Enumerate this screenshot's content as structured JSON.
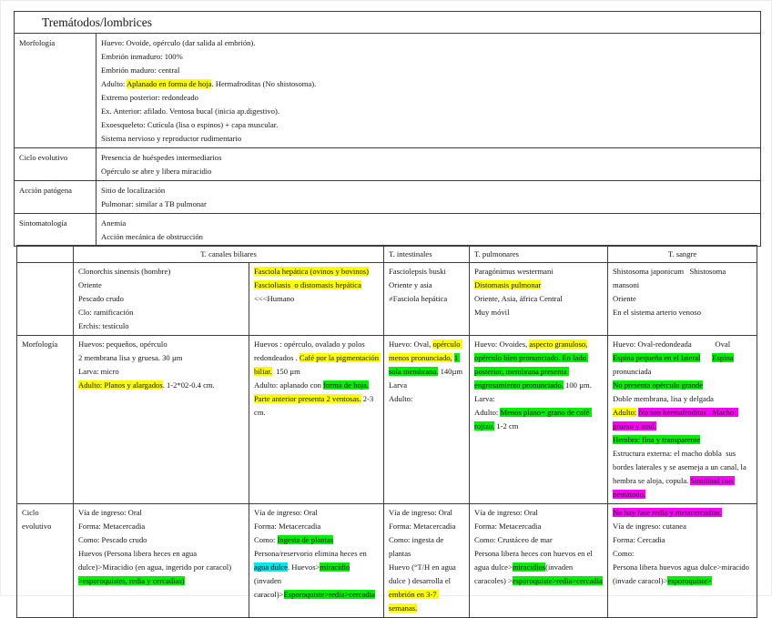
{
  "colors": {
    "highlight_yellow": "#ffff00",
    "highlight_green": "#00ee00",
    "highlight_cyan": "#00e5ee",
    "highlight_magenta": "#ff00ff",
    "text": "#161616",
    "border": "#3d3d3d"
  },
  "top_table": {
    "title": "Tremátodos/lombrices",
    "rows": [
      {
        "label": "Morfología",
        "lines": [
          [
            {
              "t": "Huevo: Ovoide, opérculo (dar salida al embrión)."
            }
          ],
          [
            {
              "t": "Embrión inmaduro: 100%"
            }
          ],
          [
            {
              "t": "Embrión maduro: central"
            }
          ],
          [
            {
              "t": "Adulto: "
            },
            {
              "t": "Aplanado en forma de hoja",
              "h": "yellow"
            },
            {
              "t": ". Hermafroditas (No shistosoma)."
            }
          ],
          [
            {
              "t": "Extremo posterior: redondeado"
            }
          ],
          [
            {
              "t": "Ex. Anterior: afilado. Ventosa bucal (inicia ap.digestivo)."
            }
          ],
          [
            {
              "t": "Exoesqueleto: Cutícula (lisa o espinos) + capa muscular."
            }
          ],
          [
            {
              "t": "Sistema nervioso y reproductor rudimentario"
            }
          ]
        ]
      },
      {
        "label": "Ciclo evolutivo",
        "lines": [
          [
            {
              "t": "Presencia de huéspedes intermediarios"
            }
          ],
          [
            {
              "t": "Opérculo se abre y libera miracidio"
            }
          ]
        ]
      },
      {
        "label": "Acción patógena",
        "lines": [
          [
            {
              "t": "Sitio de localización"
            }
          ],
          [
            {
              "t": "Pulmonar: similar a TB pulmonar"
            }
          ]
        ]
      },
      {
        "label": "Sintomatología",
        "lines": [
          [
            {
              "t": "Anemia"
            }
          ],
          [
            {
              "t": "Acción mecánica de obstrucción"
            }
          ]
        ]
      }
    ]
  },
  "bottom_table": {
    "column_headers": [
      "T. canales biliares",
      "T. intestinales",
      "T. pulmonares",
      "T. sangre"
    ],
    "row_labels": {
      "morfologia": "Morfología",
      "ciclo": "Ciclo evolutivo"
    },
    "species": [
      [
        [
          {
            "t": "Clonorchis sinensis (hombre)"
          }
        ],
        [
          {
            "t": "Oriente"
          }
        ],
        [
          {
            "t": "Pescado crudo"
          }
        ],
        [
          {
            "t": "Clo: ramificación"
          }
        ],
        [
          {
            "t": "Erchis: testículo"
          }
        ]
      ],
      [
        [
          {
            "t": "Fasciola hepática (ovinos y bovinos)",
            "h": "yellow"
          }
        ],
        [
          {
            "t": "Fascioliasis  o distomasis hepática",
            "h": "yellow"
          }
        ],
        [
          {
            "t": "<<<Humano"
          }
        ]
      ],
      [
        [
          {
            "t": "Fasciolepsis buski"
          }
        ],
        [
          {
            "t": "Oriente y asia"
          }
        ],
        [
          {
            "t": "≠Fasciola hepática"
          }
        ]
      ],
      [
        [
          {
            "t": "Paragónimus westermani"
          }
        ],
        [
          {
            "t": "Distomasis pulmonar",
            "h": "yellow"
          }
        ],
        [
          {
            "t": "Oriente, Asia, áfrica Central"
          }
        ],
        [
          {
            "t": "Muy móvil"
          }
        ]
      ],
      [
        [
          {
            "t": "Shistosoma japonicum   Shistosoma mansoni"
          }
        ],
        [
          {
            "t": "Oriente"
          }
        ],
        [
          {
            "t": "En el sistema arterio venoso"
          }
        ]
      ]
    ],
    "morfologia": [
      [
        [
          {
            "t": "Huevos: pequeños, opérculo"
          }
        ],
        [
          {
            "t": "2 membrana lisa y gruesa. 30 µm"
          }
        ],
        [
          {
            "t": "Larva: micro"
          }
        ],
        [
          {
            "t": "Adulto: Planos y alargados",
            "h": "yellow"
          },
          {
            "t": ". 1-2*02-0.4 cm."
          }
        ]
      ],
      [
        [
          {
            "t": "Huevos : opérculo, ovalado y polos redondeados . "
          },
          {
            "t": "Café por la pigmentación biliar.",
            "h": "yellow"
          },
          {
            "t": "  150 µm"
          }
        ],
        [
          {
            "t": "Adulto: aplanado con "
          },
          {
            "t": "forma de hoja.",
            "h": "green"
          },
          {
            "t": " "
          },
          {
            "t": "Parte anterior presenta 2 ventosas.",
            "h": "yellow"
          },
          {
            "t": " 2-3 cm."
          }
        ]
      ],
      [
        [
          {
            "t": "Huevo: Oval, "
          },
          {
            "t": "opérculo menos pronunciado,",
            "h": "yellow"
          },
          {
            "t": " "
          },
          {
            "t": "1 sola membrana.",
            "h": "green"
          },
          {
            "t": " 140µm"
          }
        ],
        [
          {
            "t": "Larva"
          }
        ],
        [
          {
            "t": "Adulto:"
          }
        ]
      ],
      [
        [
          {
            "t": "Huevo: Ovoides, "
          },
          {
            "t": "aspecto granuloso,",
            "h": "yellow"
          },
          {
            "t": " "
          },
          {
            "t": "opérculo bien pronunciado. En lado posterior, membrana presenta engrosamiento pronunciado.",
            "h": "green"
          },
          {
            "t": " 100 µm."
          }
        ],
        [
          {
            "t": "Larva:"
          }
        ],
        [
          {
            "t": "Adulto: "
          },
          {
            "t": "Menos plano= grano de café rojizo.",
            "h": "green"
          },
          {
            "t": " 1-2 cm"
          }
        ]
      ],
      [
        [
          {
            "t": "Huevo: Oval-redondeada            Oval"
          }
        ],
        [
          {
            "t": "Espina pequeña en el lateral",
            "h": "green"
          },
          {
            "t": "      "
          },
          {
            "t": "Espina",
            "h": "green"
          }
        ],
        [
          {
            "t": "pronunciada"
          }
        ],
        [
          {
            "t": "No presenta opérculo grande",
            "h": "green"
          }
        ],
        [
          {
            "t": "Doble membrana, lisa y delgada"
          }
        ],
        [
          {
            "t": "Adulto:",
            "h": "yellow"
          },
          {
            "t": " "
          },
          {
            "t": "No son hermafroditas . Macho: grueso y azul.",
            "h": "magenta"
          }
        ],
        [
          {
            "t": "Hembra: fina y transparente",
            "h": "green"
          }
        ],
        [
          {
            "t": "Estructura externa: el macho dobla  sus bordes laterales y se asemeja a un canal, la hembra se aloja, copula. "
          },
          {
            "t": "Similitud con nemátodo.",
            "h": "magenta"
          }
        ]
      ]
    ],
    "ciclo": [
      [
        [
          {
            "t": "Vía de ingreso: Oral"
          }
        ],
        [
          {
            "t": "Forma: Metacercadia"
          }
        ],
        [
          {
            "t": "Como: Pescado crudo"
          }
        ],
        [
          {
            "t": "Huevos (Persona libera heces en agua dulce)>Miracidio (en agua, ingerido por caracol)"
          }
        ],
        [
          {
            "t": ">esporoquistes, redia y cercadias)",
            "h": "green"
          }
        ]
      ],
      [
        [
          {
            "t": "Vía de ingreso: Oral"
          }
        ],
        [
          {
            "t": "Forma: Metacercadia"
          }
        ],
        [
          {
            "t": "Como: "
          },
          {
            "t": "Ingesta de plantas",
            "h": "green"
          }
        ],
        [
          {
            "t": "Persona/reservorio elimina heces en "
          },
          {
            "t": "agua dulce",
            "h": "cyan"
          },
          {
            "t": ". Huevos>"
          },
          {
            "t": "miracidio",
            "h": "green"
          },
          {
            "t": " (invaden caracol)>"
          },
          {
            "t": "Esporoquiste>redia>cercadia",
            "h": "green"
          }
        ]
      ],
      [
        [
          {
            "t": "Vía de ingreso: Oral"
          }
        ],
        [
          {
            "t": "Forma: Metacercadia"
          }
        ],
        [
          {
            "t": "Como: ingesta de plantas"
          }
        ],
        [
          {
            "t": "Huevo (°T/H en agua dulce ) desarrolla el "
          },
          {
            "t": "embrión en 3-7 semanas.",
            "h": "yellow"
          }
        ]
      ],
      [
        [
          {
            "t": "Vía de ingreso: Oral"
          }
        ],
        [
          {
            "t": "Forma: Metacercadia"
          }
        ],
        [
          {
            "t": "Como: Crustáceo de mar"
          }
        ],
        [
          {
            "t": "Persona libera heces con huevos en el agua dulce>"
          },
          {
            "t": "miracidios",
            "h": "green"
          },
          {
            "t": "(invaden caracoles) >"
          },
          {
            "t": "esporoquiste>redia>cercadia",
            "h": "green"
          }
        ]
      ],
      [
        [
          {
            "t": "No hay fase redia y metacercadias.",
            "h": "magenta"
          }
        ],
        [
          {
            "t": "Vía de ingreso: cutanea"
          }
        ],
        [
          {
            "t": "Forma: Cercadia"
          }
        ],
        [
          {
            "t": "Como:"
          }
        ],
        [
          {
            "t": "Persona libera huevos agua dulce>miracido (invade caracol)>"
          },
          {
            "t": "esporoquiste>",
            "h": "green"
          }
        ]
      ]
    ]
  }
}
